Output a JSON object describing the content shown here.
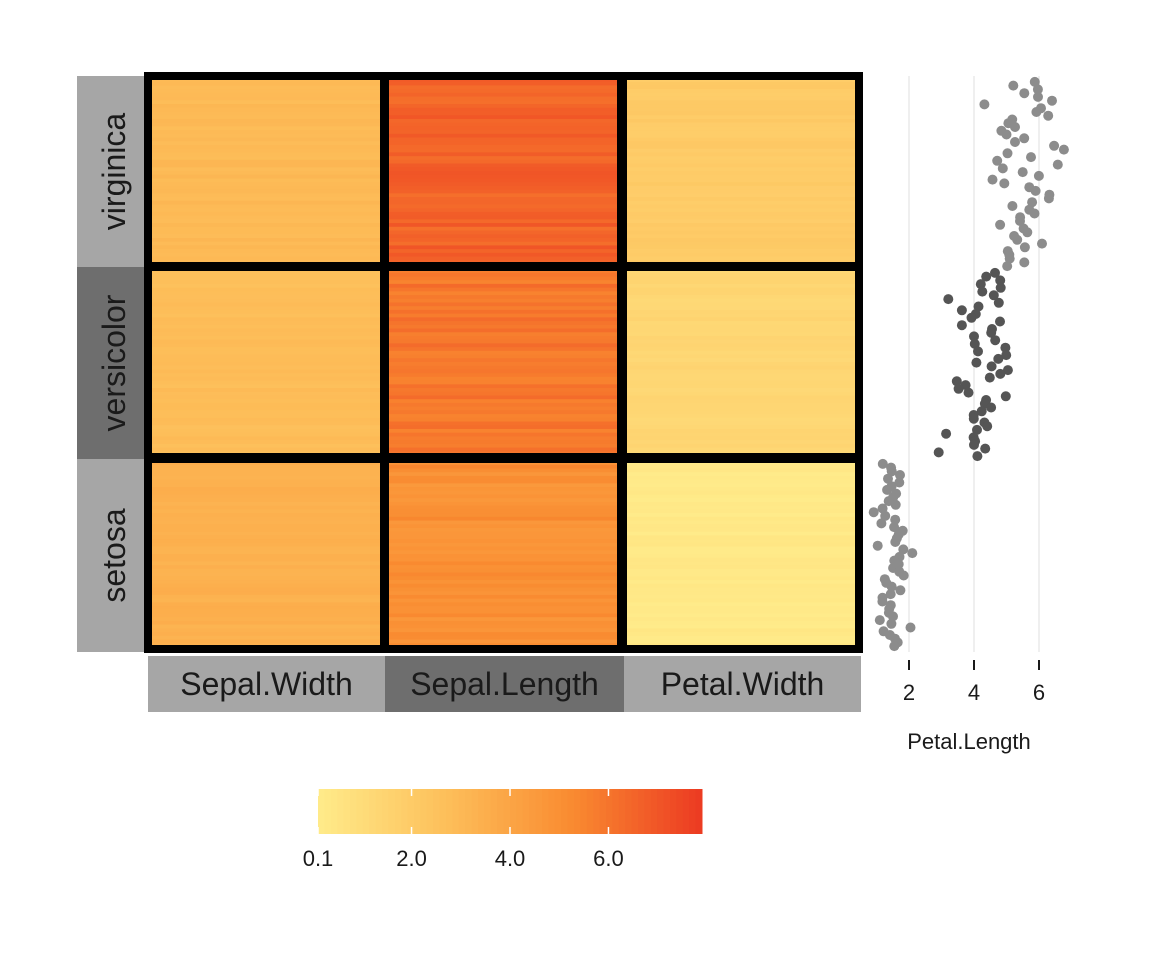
{
  "chart_data": [
    {
      "type": "heatmap",
      "title": "",
      "rows": [
        "virginica",
        "versicolor",
        "setosa"
      ],
      "columns": [
        "Sepal.Width",
        "Sepal.Length",
        "Petal.Width"
      ],
      "row_strip_colors": [
        "#a6a6a6",
        "#6e6e6e",
        "#a6a6a6"
      ],
      "column_strip_colors": [
        "#a6a6a6",
        "#6e6e6e",
        "#a6a6a6"
      ],
      "cell_means": {
        "virginica": {
          "Sepal.Width": 2.97,
          "Sepal.Length": 6.59,
          "Petal.Width": 2.03
        },
        "versicolor": {
          "Sepal.Width": 2.77,
          "Sepal.Length": 5.94,
          "Petal.Width": 1.33
        },
        "setosa": {
          "Sepal.Width": 3.43,
          "Sepal.Length": 5.01,
          "Petal.Width": 0.25
        }
      },
      "color_scale": {
        "colors": [
          "#ffeb8a",
          "#fdbf5a",
          "#f98a30",
          "#ec3a22"
        ],
        "min": 0.1,
        "max": 7.9,
        "ticks": [
          0.1,
          2.0,
          4.0,
          6.0
        ],
        "tick_labels": [
          "0.1",
          "2.0",
          "4.0",
          "6.0"
        ],
        "legend_position": "bottom"
      }
    },
    {
      "type": "scatter",
      "xlabel": "Petal.Length",
      "xticks": [
        2,
        4,
        6
      ],
      "xlim": [
        0.9,
        7.1
      ],
      "grid": true,
      "series": [
        {
          "group": "virginica",
          "color": "#8c8c8c",
          "values": [
            6.0,
            5.1,
            5.9,
            5.6,
            5.8,
            6.6,
            4.5,
            6.3,
            5.8,
            6.1,
            5.1,
            5.3,
            5.5,
            5.0,
            5.1,
            5.3,
            5.5,
            6.7,
            6.9,
            5.0,
            5.7,
            4.9,
            6.7,
            4.9,
            5.7,
            6.0,
            4.8,
            4.9,
            5.6,
            5.8,
            6.1,
            6.4,
            5.6,
            5.1,
            5.6,
            6.1,
            5.6,
            5.5,
            4.8,
            5.4,
            5.6,
            5.1,
            5.1,
            5.9,
            5.7,
            5.2,
            5.0,
            5.2,
            5.4,
            5.1
          ]
        },
        {
          "group": "versicolor",
          "color": "#555555",
          "values": [
            4.7,
            4.5,
            4.9,
            4.0,
            4.6,
            4.5,
            4.7,
            3.3,
            4.6,
            3.9,
            3.5,
            4.2,
            4.0,
            4.7,
            3.6,
            4.4,
            4.5,
            4.1,
            4.5,
            3.9,
            4.8,
            4.0,
            4.9,
            4.7,
            4.3,
            4.4,
            4.8,
            5.0,
            4.5,
            3.5,
            3.8,
            3.7,
            3.9,
            5.1,
            4.5,
            4.5,
            4.7,
            4.4,
            4.1,
            4.0,
            4.4,
            4.6,
            4.0,
            3.3,
            4.2,
            4.2,
            4.2,
            4.3,
            3.0,
            4.1
          ]
        },
        {
          "group": "setosa",
          "color": "#8c8c8c",
          "values": [
            1.4,
            1.4,
            1.3,
            1.5,
            1.4,
            1.7,
            1.4,
            1.5,
            1.4,
            1.5,
            1.5,
            1.6,
            1.4,
            1.1,
            1.2,
            1.5,
            1.3,
            1.4,
            1.7,
            1.5,
            1.7,
            1.5,
            1.0,
            1.7,
            1.9,
            1.6,
            1.6,
            1.5,
            1.4,
            1.6,
            1.6,
            1.5,
            1.5,
            1.4,
            1.5,
            1.2,
            1.3,
            1.4,
            1.3,
            1.5,
            1.3,
            1.3,
            1.3,
            1.6,
            1.9,
            1.4,
            1.6,
            1.4,
            1.5,
            1.4
          ]
        }
      ]
    }
  ]
}
